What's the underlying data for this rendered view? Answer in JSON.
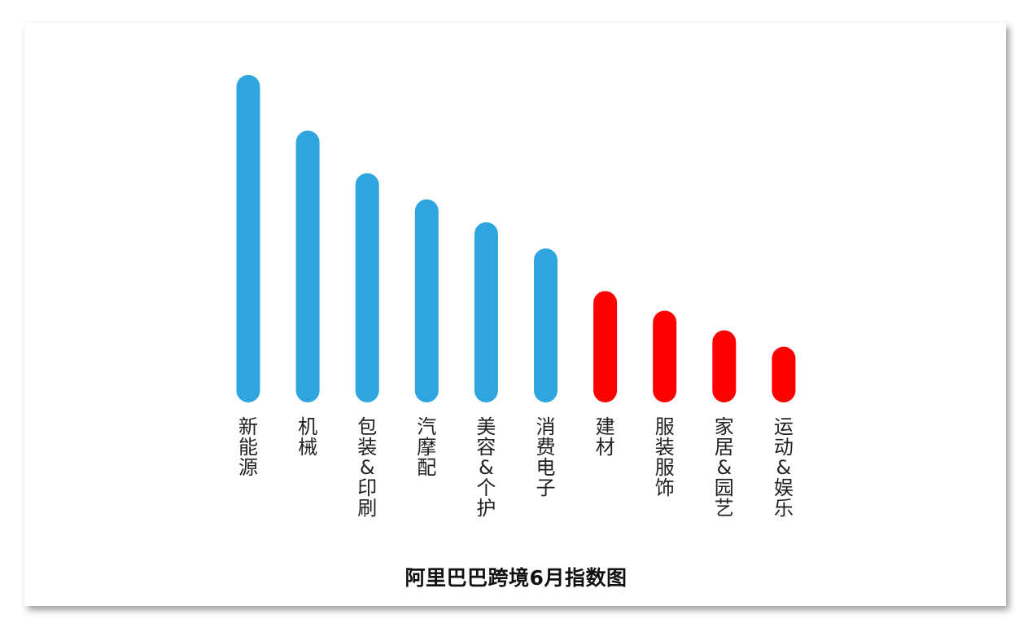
{
  "chart_data": {
    "type": "bar",
    "title": "阿里巴巴跨境6月指数图",
    "xlabel": "",
    "ylabel": "",
    "ylim": [
      0,
      100
    ],
    "grid": false,
    "categories": [
      "新能源",
      "机械",
      "包装&印刷",
      "汽摩配",
      "美容&个护",
      "消费电子",
      "建材",
      "服装服饰",
      "家居&园艺",
      "运动&娱乐"
    ],
    "values": [
      100,
      83,
      70,
      62,
      55,
      47,
      34,
      28,
      22,
      17
    ],
    "bar_colors": [
      "#2EA5DE",
      "#2EA5DE",
      "#2EA5DE",
      "#2EA5DE",
      "#2EA5DE",
      "#2EA5DE",
      "#FF0000",
      "#FF0000",
      "#FF0000",
      "#FF0000"
    ]
  }
}
